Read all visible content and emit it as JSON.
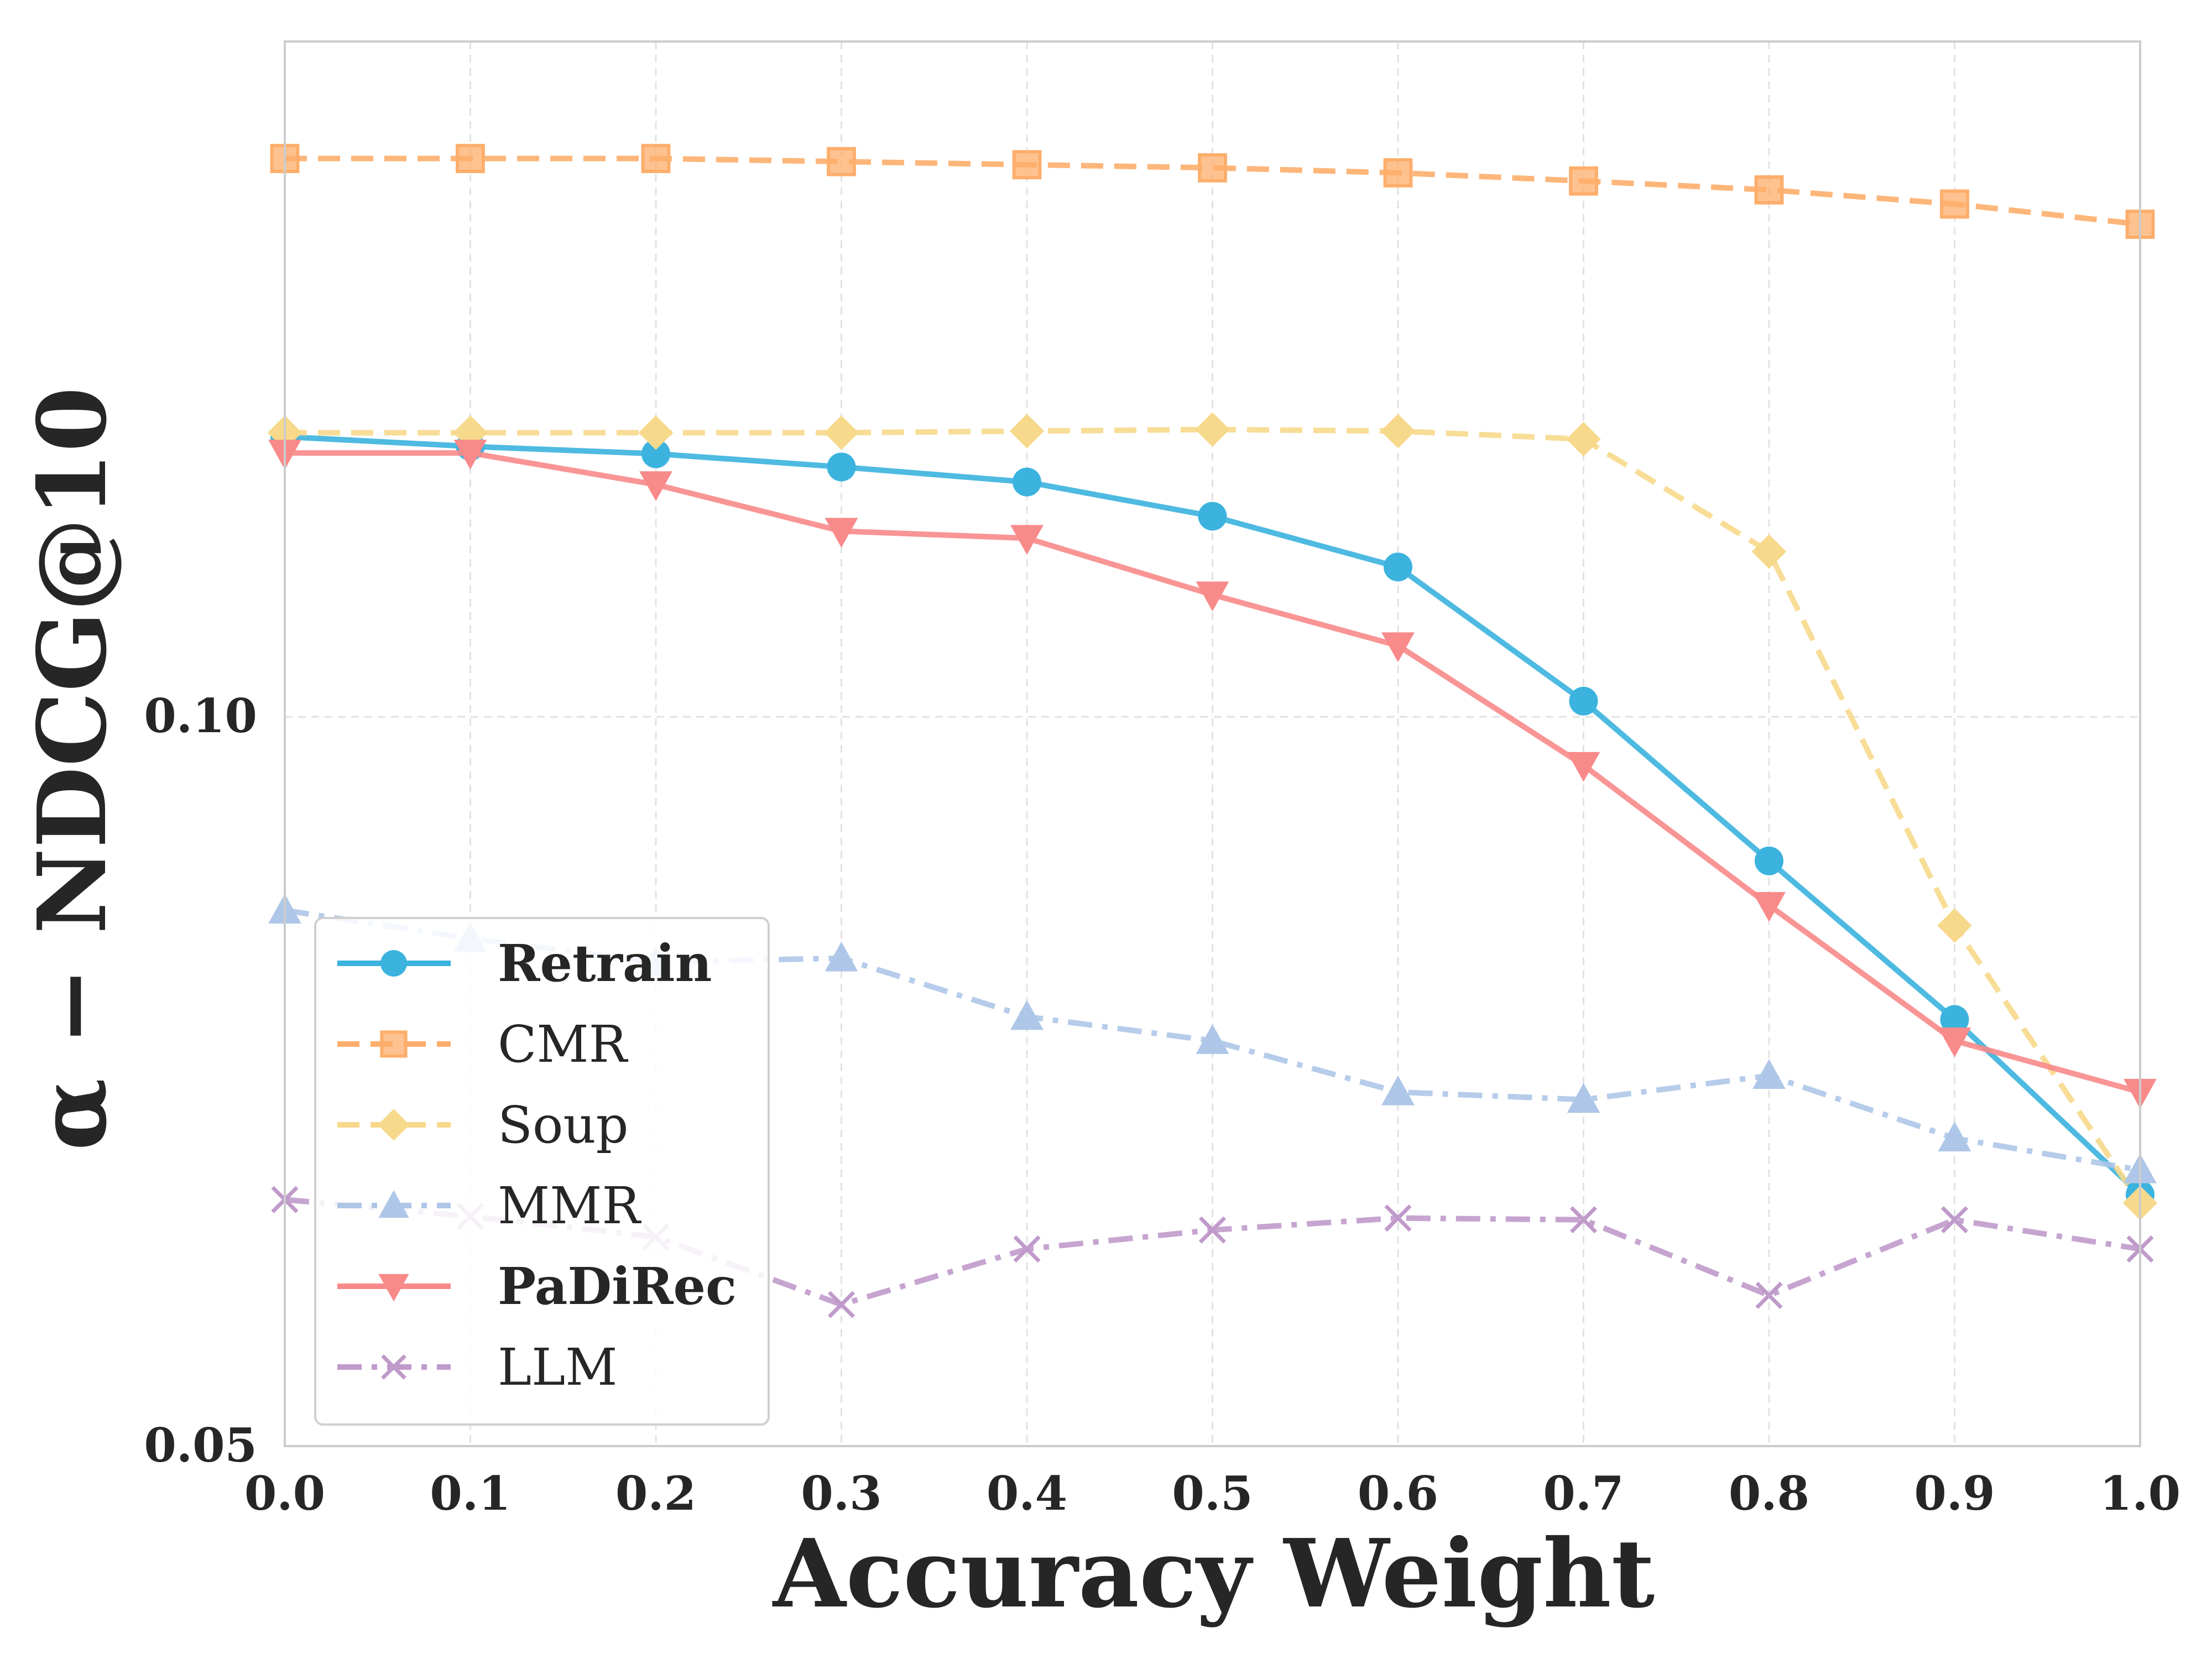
{
  "chart_data": {
    "type": "line",
    "xlabel": "Accuracy Weight",
    "ylabel": "α − NDCG@10",
    "yscale": "log",
    "xlim": [
      0.0,
      1.0
    ],
    "ylim": [
      0.05,
      0.19
    ],
    "x_ticks": [
      "0.0",
      "0.1",
      "0.2",
      "0.3",
      "0.4",
      "0.5",
      "0.6",
      "0.7",
      "0.8",
      "0.9",
      "1.0"
    ],
    "y_ticks": [
      {
        "value": 0.05,
        "label": "0.05"
      },
      {
        "value": 0.1,
        "label": "0.10"
      }
    ],
    "grid": true,
    "legend_position": "lower-left",
    "x": [
      0.0,
      0.1,
      0.2,
      0.3,
      0.4,
      0.5,
      0.6,
      0.7,
      0.8,
      0.9,
      1.0
    ],
    "series": [
      {
        "name": "Retrain",
        "bold": true,
        "color": "#3bb3de",
        "dash": "solid",
        "marker": "circle",
        "values": [
          0.1305,
          0.1293,
          0.1284,
          0.1268,
          0.125,
          0.121,
          0.1153,
          0.1015,
          0.0872,
          0.075,
          0.0635
        ]
      },
      {
        "name": "CMR",
        "bold": false,
        "color": "#fdae6b",
        "dash": "dashed",
        "marker": "square",
        "values": [
          0.17,
          0.17,
          0.17,
          0.1695,
          0.169,
          0.1685,
          0.1677,
          0.1664,
          0.165,
          0.1628,
          0.1597
        ]
      },
      {
        "name": "Soup",
        "bold": false,
        "color": "#f7d98c",
        "dash": "dashed",
        "marker": "diamond",
        "values": [
          0.131,
          0.131,
          0.131,
          0.131,
          0.1312,
          0.1314,
          0.1312,
          0.1302,
          0.117,
          0.082,
          0.063
        ]
      },
      {
        "name": "MMR",
        "bold": false,
        "color": "#aec7e8",
        "dash": "dashdot",
        "marker": "triangle-up",
        "values": [
          0.0832,
          0.081,
          0.0792,
          0.0795,
          0.0752,
          0.0735,
          0.07,
          0.0695,
          0.0711,
          0.067,
          0.065
        ]
      },
      {
        "name": "PaDiRec",
        "bold": true,
        "color": "#f88a8a",
        "dash": "solid",
        "marker": "triangle-down",
        "values": [
          0.1285,
          0.1285,
          0.1247,
          0.1193,
          0.1185,
          0.1123,
          0.107,
          0.0955,
          0.0836,
          0.0735,
          0.07
        ]
      },
      {
        "name": "LLM",
        "bold": false,
        "color": "#c09acb",
        "dash": "dashdot",
        "marker": "x",
        "values": [
          0.0632,
          0.0622,
          0.061,
          0.0572,
          0.0603,
          0.0614,
          0.0621,
          0.062,
          0.0577,
          0.062,
          0.0603
        ]
      }
    ]
  }
}
